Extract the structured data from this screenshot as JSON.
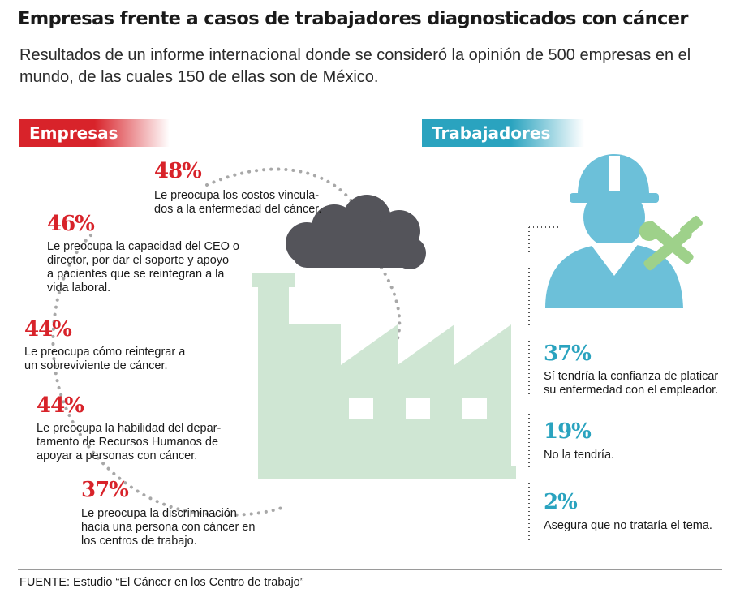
{
  "title": "Empresas frente a casos de trabajadores diagnosticados con cáncer",
  "subtitle": "Resultados de un informe internacional donde se consideró la opinión de 500 empresas en el mundo, de las cuales 150 de ellas son de México.",
  "colors": {
    "red": "#d8232a",
    "blue": "#2aa3bf",
    "factory": "#cfe6d3",
    "cloud": "#54545a",
    "dots": "#a8a8a8"
  },
  "icons": [
    "factory-icon",
    "smoke-cloud-icon",
    "worker-icon",
    "hard-hat-icon",
    "wrench-hammer-icon"
  ],
  "empresas": {
    "label": "Empresas",
    "items": [
      {
        "pct": "48%",
        "text": "Le preocupa los costos vincula-\ndos a la enfermedad del cáncer."
      },
      {
        "pct": "46%",
        "text": "Le preocupa la capacidad del CEO o\ndirector, por dar el soporte y apoyo\na pacientes que se reintegran a la\nvida laboral."
      },
      {
        "pct": "44%",
        "text": "Le preocupa cómo reintegrar a\nun sobreviviente de cáncer."
      },
      {
        "pct": "44%",
        "text": "Le preocupa la habilidad del depar-\ntamento de Recursos Humanos de\napoyar a personas con cáncer."
      },
      {
        "pct": "37%",
        "text": "Le preocupa la discriminación\nhacia una persona con cáncer en\nlos centros de trabajo."
      }
    ]
  },
  "trabajadores": {
    "label": "Trabajadores",
    "items": [
      {
        "pct": "37%",
        "text": "Sí tendría la confianza de platicar\nsu enfermedad con el empleador."
      },
      {
        "pct": "19%",
        "text": "No la tendría."
      },
      {
        "pct": "2%",
        "text": "Asegura que no trataría el tema."
      }
    ]
  },
  "source": "FUENTE: Estudio “El Cáncer en los Centro de trabajo”"
}
